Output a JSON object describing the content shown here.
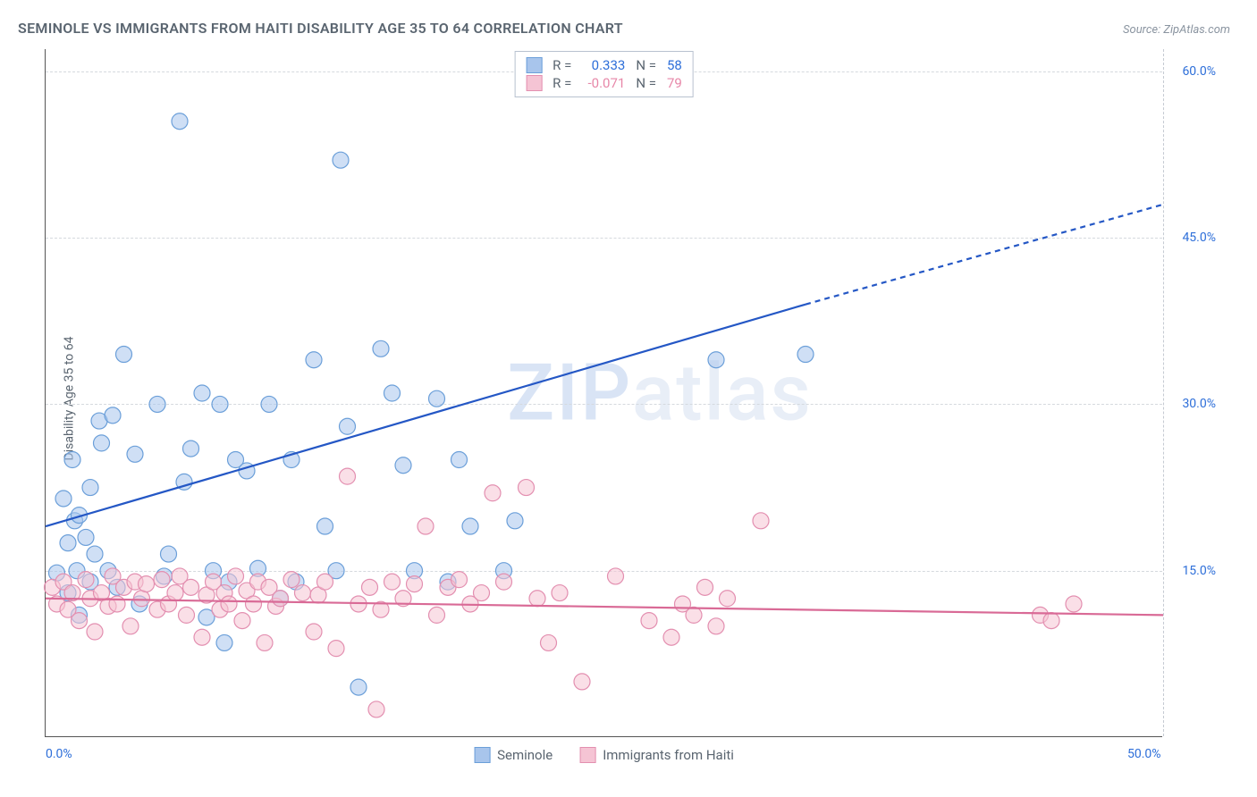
{
  "title": "SEMINOLE VS IMMIGRANTS FROM HAITI DISABILITY AGE 35 TO 64 CORRELATION CHART",
  "source": "Source: ZipAtlas.com",
  "y_axis_label": "Disability Age 35 to 64",
  "watermark": "ZIPatlas",
  "chart": {
    "type": "scatter",
    "background_color": "#ffffff",
    "grid_color": "#d5d9de",
    "axis_color": "#555555",
    "xlim": [
      0,
      50
    ],
    "ylim": [
      0,
      62
    ],
    "x_ticks": [
      {
        "v": 0,
        "label": "0.0%"
      },
      {
        "v": 50,
        "label": "50.0%"
      }
    ],
    "y_ticks": [
      {
        "v": 15,
        "label": "15.0%"
      },
      {
        "v": 30,
        "label": "30.0%"
      },
      {
        "v": 45,
        "label": "45.0%"
      },
      {
        "v": 60,
        "label": "60.0%"
      }
    ],
    "marker_radius": 9,
    "marker_opacity": 0.55,
    "series": [
      {
        "name": "Seminole",
        "color_fill": "#a8c5ec",
        "color_stroke": "#6b9fd9",
        "R": "0.333",
        "N": "58",
        "trend": {
          "x1": 0,
          "y1": 19,
          "x2": 34,
          "y2": 39,
          "x2_ext": 50,
          "y2_ext": 48,
          "color": "#2457c5",
          "width": 2.2
        },
        "points": [
          [
            0.5,
            14.8
          ],
          [
            0.8,
            21.5
          ],
          [
            1.0,
            13.0
          ],
          [
            1.0,
            17.5
          ],
          [
            1.2,
            25.0
          ],
          [
            1.3,
            19.5
          ],
          [
            1.4,
            15.0
          ],
          [
            1.5,
            11.0
          ],
          [
            1.5,
            20.0
          ],
          [
            1.8,
            18.0
          ],
          [
            2.0,
            22.5
          ],
          [
            2.0,
            14.0
          ],
          [
            2.2,
            16.5
          ],
          [
            2.4,
            28.5
          ],
          [
            2.5,
            26.5
          ],
          [
            2.8,
            15.0
          ],
          [
            3.0,
            29.0
          ],
          [
            3.2,
            13.5
          ],
          [
            3.5,
            34.5
          ],
          [
            4.0,
            25.5
          ],
          [
            4.2,
            12.0
          ],
          [
            5.0,
            30.0
          ],
          [
            5.3,
            14.5
          ],
          [
            5.5,
            16.5
          ],
          [
            6.0,
            55.5
          ],
          [
            6.2,
            23.0
          ],
          [
            6.5,
            26.0
          ],
          [
            7.0,
            31.0
          ],
          [
            7.2,
            10.8
          ],
          [
            7.5,
            15.0
          ],
          [
            7.8,
            30.0
          ],
          [
            8.0,
            8.5
          ],
          [
            8.2,
            14.0
          ],
          [
            8.5,
            25.0
          ],
          [
            9.0,
            24.0
          ],
          [
            9.5,
            15.2
          ],
          [
            10.0,
            30.0
          ],
          [
            10.5,
            12.5
          ],
          [
            11.0,
            25.0
          ],
          [
            11.2,
            14.0
          ],
          [
            12.0,
            34.0
          ],
          [
            12.5,
            19.0
          ],
          [
            13.0,
            15.0
          ],
          [
            13.2,
            52.0
          ],
          [
            13.5,
            28.0
          ],
          [
            14.0,
            4.5
          ],
          [
            15.0,
            35.0
          ],
          [
            15.5,
            31.0
          ],
          [
            16.0,
            24.5
          ],
          [
            16.5,
            15.0
          ],
          [
            17.5,
            30.5
          ],
          [
            18.0,
            14.0
          ],
          [
            18.5,
            25.0
          ],
          [
            19.0,
            19.0
          ],
          [
            20.5,
            15.0
          ],
          [
            21.0,
            19.5
          ],
          [
            30.0,
            34.0
          ],
          [
            34.0,
            34.5
          ]
        ]
      },
      {
        "name": "Immigrants from Haiti",
        "color_fill": "#f5c4d4",
        "color_stroke": "#e38fb0",
        "R": "-0.071",
        "N": "79",
        "trend": {
          "x1": 0,
          "y1": 12.5,
          "x2": 50,
          "y2": 11.0,
          "color": "#d96a96",
          "width": 2.2
        },
        "points": [
          [
            0.3,
            13.5
          ],
          [
            0.5,
            12.0
          ],
          [
            0.8,
            14.0
          ],
          [
            1.0,
            11.5
          ],
          [
            1.2,
            13.0
          ],
          [
            1.5,
            10.5
          ],
          [
            1.8,
            14.2
          ],
          [
            2.0,
            12.5
          ],
          [
            2.2,
            9.5
          ],
          [
            2.5,
            13.0
          ],
          [
            2.8,
            11.8
          ],
          [
            3.0,
            14.5
          ],
          [
            3.2,
            12.0
          ],
          [
            3.5,
            13.5
          ],
          [
            3.8,
            10.0
          ],
          [
            4.0,
            14.0
          ],
          [
            4.3,
            12.5
          ],
          [
            4.5,
            13.8
          ],
          [
            5.0,
            11.5
          ],
          [
            5.2,
            14.2
          ],
          [
            5.5,
            12.0
          ],
          [
            5.8,
            13.0
          ],
          [
            6.0,
            14.5
          ],
          [
            6.3,
            11.0
          ],
          [
            6.5,
            13.5
          ],
          [
            7.0,
            9.0
          ],
          [
            7.2,
            12.8
          ],
          [
            7.5,
            14.0
          ],
          [
            7.8,
            11.5
          ],
          [
            8.0,
            13.0
          ],
          [
            8.2,
            12.0
          ],
          [
            8.5,
            14.5
          ],
          [
            8.8,
            10.5
          ],
          [
            9.0,
            13.2
          ],
          [
            9.3,
            12.0
          ],
          [
            9.5,
            14.0
          ],
          [
            9.8,
            8.5
          ],
          [
            10.0,
            13.5
          ],
          [
            10.3,
            11.8
          ],
          [
            10.5,
            12.5
          ],
          [
            11.0,
            14.2
          ],
          [
            11.5,
            13.0
          ],
          [
            12.0,
            9.5
          ],
          [
            12.2,
            12.8
          ],
          [
            12.5,
            14.0
          ],
          [
            13.0,
            8.0
          ],
          [
            13.5,
            23.5
          ],
          [
            14.0,
            12.0
          ],
          [
            14.5,
            13.5
          ],
          [
            14.8,
            2.5
          ],
          [
            15.0,
            11.5
          ],
          [
            15.5,
            14.0
          ],
          [
            16.0,
            12.5
          ],
          [
            16.5,
            13.8
          ],
          [
            17.0,
            19.0
          ],
          [
            17.5,
            11.0
          ],
          [
            18.0,
            13.5
          ],
          [
            18.5,
            14.2
          ],
          [
            19.0,
            12.0
          ],
          [
            19.5,
            13.0
          ],
          [
            20.0,
            22.0
          ],
          [
            20.5,
            14.0
          ],
          [
            21.5,
            22.5
          ],
          [
            22.0,
            12.5
          ],
          [
            22.5,
            8.5
          ],
          [
            23.0,
            13.0
          ],
          [
            24.0,
            5.0
          ],
          [
            25.5,
            14.5
          ],
          [
            27.0,
            10.5
          ],
          [
            28.0,
            9.0
          ],
          [
            28.5,
            12.0
          ],
          [
            29.0,
            11.0
          ],
          [
            29.5,
            13.5
          ],
          [
            30.0,
            10.0
          ],
          [
            30.5,
            12.5
          ],
          [
            32.0,
            19.5
          ],
          [
            44.5,
            11.0
          ],
          [
            45.0,
            10.5
          ],
          [
            46.0,
            12.0
          ]
        ]
      }
    ],
    "legend_labels": {
      "r_label": "R =",
      "n_label": "N ="
    }
  }
}
